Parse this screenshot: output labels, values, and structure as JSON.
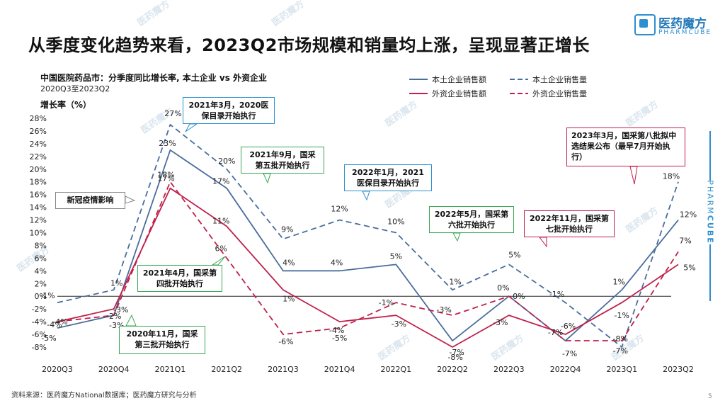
{
  "slide": {
    "title": "从季度变化趋势来看，2023Q2市场规模和销量均上涨，呈现显著正增长",
    "source": "资料来源：医药魔方National数据库；医药魔方研究与分析",
    "page_number": "5"
  },
  "brand": {
    "logo_cn": "医药魔方",
    "logo_en": "PHARMCUBE",
    "side_text_a": "PHARM",
    "side_text_b": "CUBE",
    "watermark": "医药魔方",
    "color": "#2d8fd0"
  },
  "chart_data": {
    "type": "line",
    "title": "中国医院药品市：分季度同比增长率, 本土企业 vs 外资企业",
    "subtitle": "2020Q3至2023Q2",
    "ylabel": "增长率（%）",
    "xlabel": "",
    "ylim": [
      -8,
      28
    ],
    "y_ticks": [
      "28%",
      "26%",
      "24%",
      "22%",
      "20%",
      "18%",
      "16%",
      "14%",
      "12%",
      "10%",
      "8%",
      "6%",
      "4%",
      "2%",
      "0%",
      "-2%",
      "-4%",
      "-6%",
      "-8%"
    ],
    "categories": [
      "2020Q3",
      "2020Q4",
      "2021Q1",
      "2021Q2",
      "2021Q3",
      "2021Q4",
      "2022Q1",
      "2022Q2",
      "2022Q3",
      "2022Q4",
      "2023Q1",
      "2023Q2"
    ],
    "legend_position": "top-right",
    "grid": false,
    "series": [
      {
        "name": "本土企业销售额",
        "color": "#4a6d9c",
        "dash": false,
        "values": [
          -5,
          -3,
          23,
          17,
          4,
          4,
          5,
          -7,
          0,
          -7,
          1,
          12
        ],
        "labels": [
          "-5%",
          "-3%",
          "23%",
          "17%",
          "4%",
          "4%",
          "5%",
          "-7%",
          "0%",
          "-7%",
          "1%",
          "12%"
        ]
      },
      {
        "name": "本土企业销售量",
        "color": "#4a6d9c",
        "dash": true,
        "values": [
          -1,
          1,
          27,
          20,
          9,
          12,
          10,
          1,
          5,
          -1,
          -8,
          18
        ],
        "labels": [
          "-1%",
          "1%",
          "27%",
          "20%",
          "9%",
          "12%",
          "10%",
          "1%",
          "5%",
          "-1%",
          "-8%",
          "18%"
        ]
      },
      {
        "name": "外资企业销售额",
        "color": "#c0204a",
        "dash": false,
        "values": [
          -4,
          -2,
          17,
          11,
          1,
          -4,
          -3,
          -8,
          -3,
          -6,
          -1,
          5
        ],
        "labels": [
          "-4%",
          "-2%",
          "17%",
          "11%",
          "1%",
          "-4%",
          "-3%",
          "-8%",
          "-3%",
          "-6%",
          "-1%",
          "5%"
        ]
      },
      {
        "name": "外资企业销售量",
        "color": "#c0204a",
        "dash": true,
        "values": [
          -4,
          -3,
          18,
          6,
          -6,
          -5,
          -1,
          -3,
          0,
          -7,
          -7,
          7
        ],
        "labels": [
          "-4%",
          "-3%",
          "18%",
          "6%",
          "-6%",
          "-5%",
          "-1%",
          "-3%",
          "0%",
          "-7%",
          "-7%",
          "7%"
        ]
      }
    ],
    "annotations": [
      {
        "text": "新冠疫情影响",
        "color": "#555555"
      },
      {
        "text": "2020年11月，国采第三批开始执行",
        "color": "#3aa655"
      },
      {
        "text": "2021年3月，2020医保目录开始执行",
        "color": "#2d8fd0"
      },
      {
        "text": "2021年4月，国采第四批开始执行",
        "color": "#3aa655"
      },
      {
        "text": "2021年9月，国采第五批开始执行",
        "color": "#3aa655"
      },
      {
        "text": "2022年1月，2021医保目录开始执行",
        "color": "#2d8fd0"
      },
      {
        "text": "2022年5月，国采第六批开始执行",
        "color": "#3aa655"
      },
      {
        "text": "2022年11月，国采第七批开始执行",
        "color": "#c0204a"
      },
      {
        "text": "2023年3月，国采第八批拟中选结果公布（最早7月开始执行）",
        "color": "#c0204a"
      }
    ]
  }
}
